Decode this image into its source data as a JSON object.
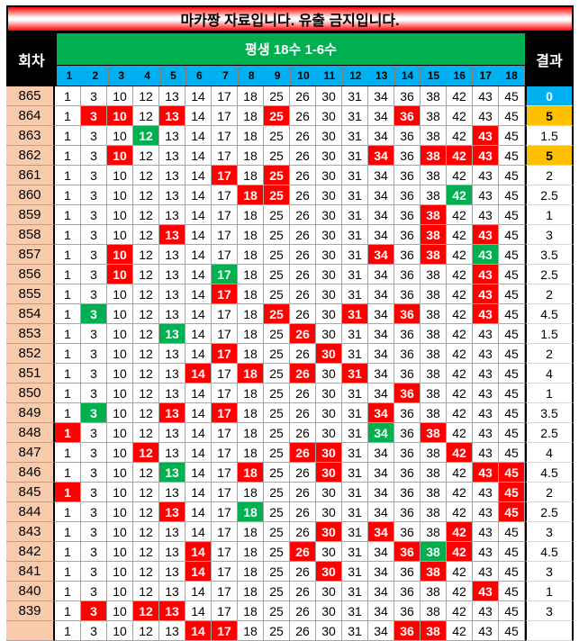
{
  "title": "마카짱 자료입니다. 유출 금지입니다.",
  "header": {
    "round_label": "회차",
    "group_label": "평생 18수 1-6수",
    "result_label": "결과"
  },
  "column_numbers": [
    "1",
    "2",
    "3",
    "4",
    "5",
    "6",
    "7",
    "8",
    "9",
    "10",
    "11",
    "12",
    "13",
    "14",
    "15",
    "16",
    "17",
    "18"
  ],
  "numbers": [
    "1",
    "3",
    "10",
    "12",
    "13",
    "14",
    "17",
    "18",
    "25",
    "26",
    "30",
    "31",
    "34",
    "36",
    "38",
    "42",
    "43",
    "45"
  ],
  "colors": {
    "red": "#ff0000",
    "green": "#00b050",
    "result_zero": "#00b0f0",
    "result_high": "#ffc000",
    "round_bg": "#f8cbad"
  },
  "rows": [
    {
      "round": "865",
      "red": [],
      "green": [],
      "result": "0",
      "result_style": "blue"
    },
    {
      "round": "864",
      "red": [
        2,
        3,
        5,
        9,
        14
      ],
      "green": [],
      "result": "5",
      "result_style": "orange"
    },
    {
      "round": "863",
      "red": [
        17
      ],
      "green": [
        4
      ],
      "result": "1.5",
      "result_style": ""
    },
    {
      "round": "862",
      "red": [
        3,
        13,
        15,
        16,
        17
      ],
      "green": [],
      "result": "5",
      "result_style": "orange"
    },
    {
      "round": "861",
      "red": [
        7,
        9
      ],
      "green": [],
      "result": "2",
      "result_style": ""
    },
    {
      "round": "860",
      "red": [
        8,
        9
      ],
      "green": [
        16
      ],
      "result": "2.5",
      "result_style": ""
    },
    {
      "round": "859",
      "red": [
        15
      ],
      "green": [],
      "result": "1",
      "result_style": ""
    },
    {
      "round": "858",
      "red": [
        5,
        15,
        17
      ],
      "green": [],
      "result": "3",
      "result_style": ""
    },
    {
      "round": "857",
      "red": [
        3,
        13,
        15
      ],
      "green": [
        17
      ],
      "result": "3.5",
      "result_style": ""
    },
    {
      "round": "856",
      "red": [
        3,
        17
      ],
      "green": [
        7
      ],
      "result": "2.5",
      "result_style": ""
    },
    {
      "round": "855",
      "red": [
        7,
        17
      ],
      "green": [],
      "result": "2",
      "result_style": ""
    },
    {
      "round": "854",
      "red": [
        9,
        12,
        14,
        17
      ],
      "green": [
        2
      ],
      "result": "4.5",
      "result_style": ""
    },
    {
      "round": "853",
      "red": [
        10
      ],
      "green": [
        5
      ],
      "result": "1.5",
      "result_style": ""
    },
    {
      "round": "852",
      "red": [
        7,
        11
      ],
      "green": [],
      "result": "2",
      "result_style": ""
    },
    {
      "round": "851",
      "red": [
        6,
        8,
        10,
        12
      ],
      "green": [],
      "result": "4",
      "result_style": ""
    },
    {
      "round": "850",
      "red": [
        14
      ],
      "green": [],
      "result": "1",
      "result_style": ""
    },
    {
      "round": "849",
      "red": [
        5,
        7,
        13
      ],
      "green": [
        2
      ],
      "result": "3.5",
      "result_style": ""
    },
    {
      "round": "848",
      "red": [
        1,
        15
      ],
      "green": [
        13
      ],
      "result": "2.5",
      "result_style": ""
    },
    {
      "round": "847",
      "red": [
        4,
        10,
        11,
        16
      ],
      "green": [],
      "result": "4",
      "result_style": ""
    },
    {
      "round": "846",
      "red": [
        8,
        11,
        17,
        18
      ],
      "green": [
        5
      ],
      "result": "4.5",
      "result_style": ""
    },
    {
      "round": "845",
      "red": [
        1,
        18
      ],
      "green": [],
      "result": "2",
      "result_style": ""
    },
    {
      "round": "844",
      "red": [
        5,
        18
      ],
      "green": [
        8
      ],
      "result": "2.5",
      "result_style": ""
    },
    {
      "round": "843",
      "red": [
        11,
        13,
        16
      ],
      "green": [],
      "result": "3",
      "result_style": ""
    },
    {
      "round": "842",
      "red": [
        6,
        10,
        14,
        16
      ],
      "green": [
        15
      ],
      "result": "4.5",
      "result_style": ""
    },
    {
      "round": "841",
      "red": [
        6,
        11,
        15
      ],
      "green": [],
      "result": "3",
      "result_style": ""
    },
    {
      "round": "840",
      "red": [
        17
      ],
      "green": [],
      "result": "1",
      "result_style": ""
    },
    {
      "round": "839",
      "red": [
        2,
        4,
        5
      ],
      "green": [],
      "result": "3",
      "result_style": ""
    },
    {
      "round": "",
      "red": [
        6,
        7,
        14,
        15
      ],
      "green": [],
      "result": "",
      "result_style": ""
    }
  ]
}
